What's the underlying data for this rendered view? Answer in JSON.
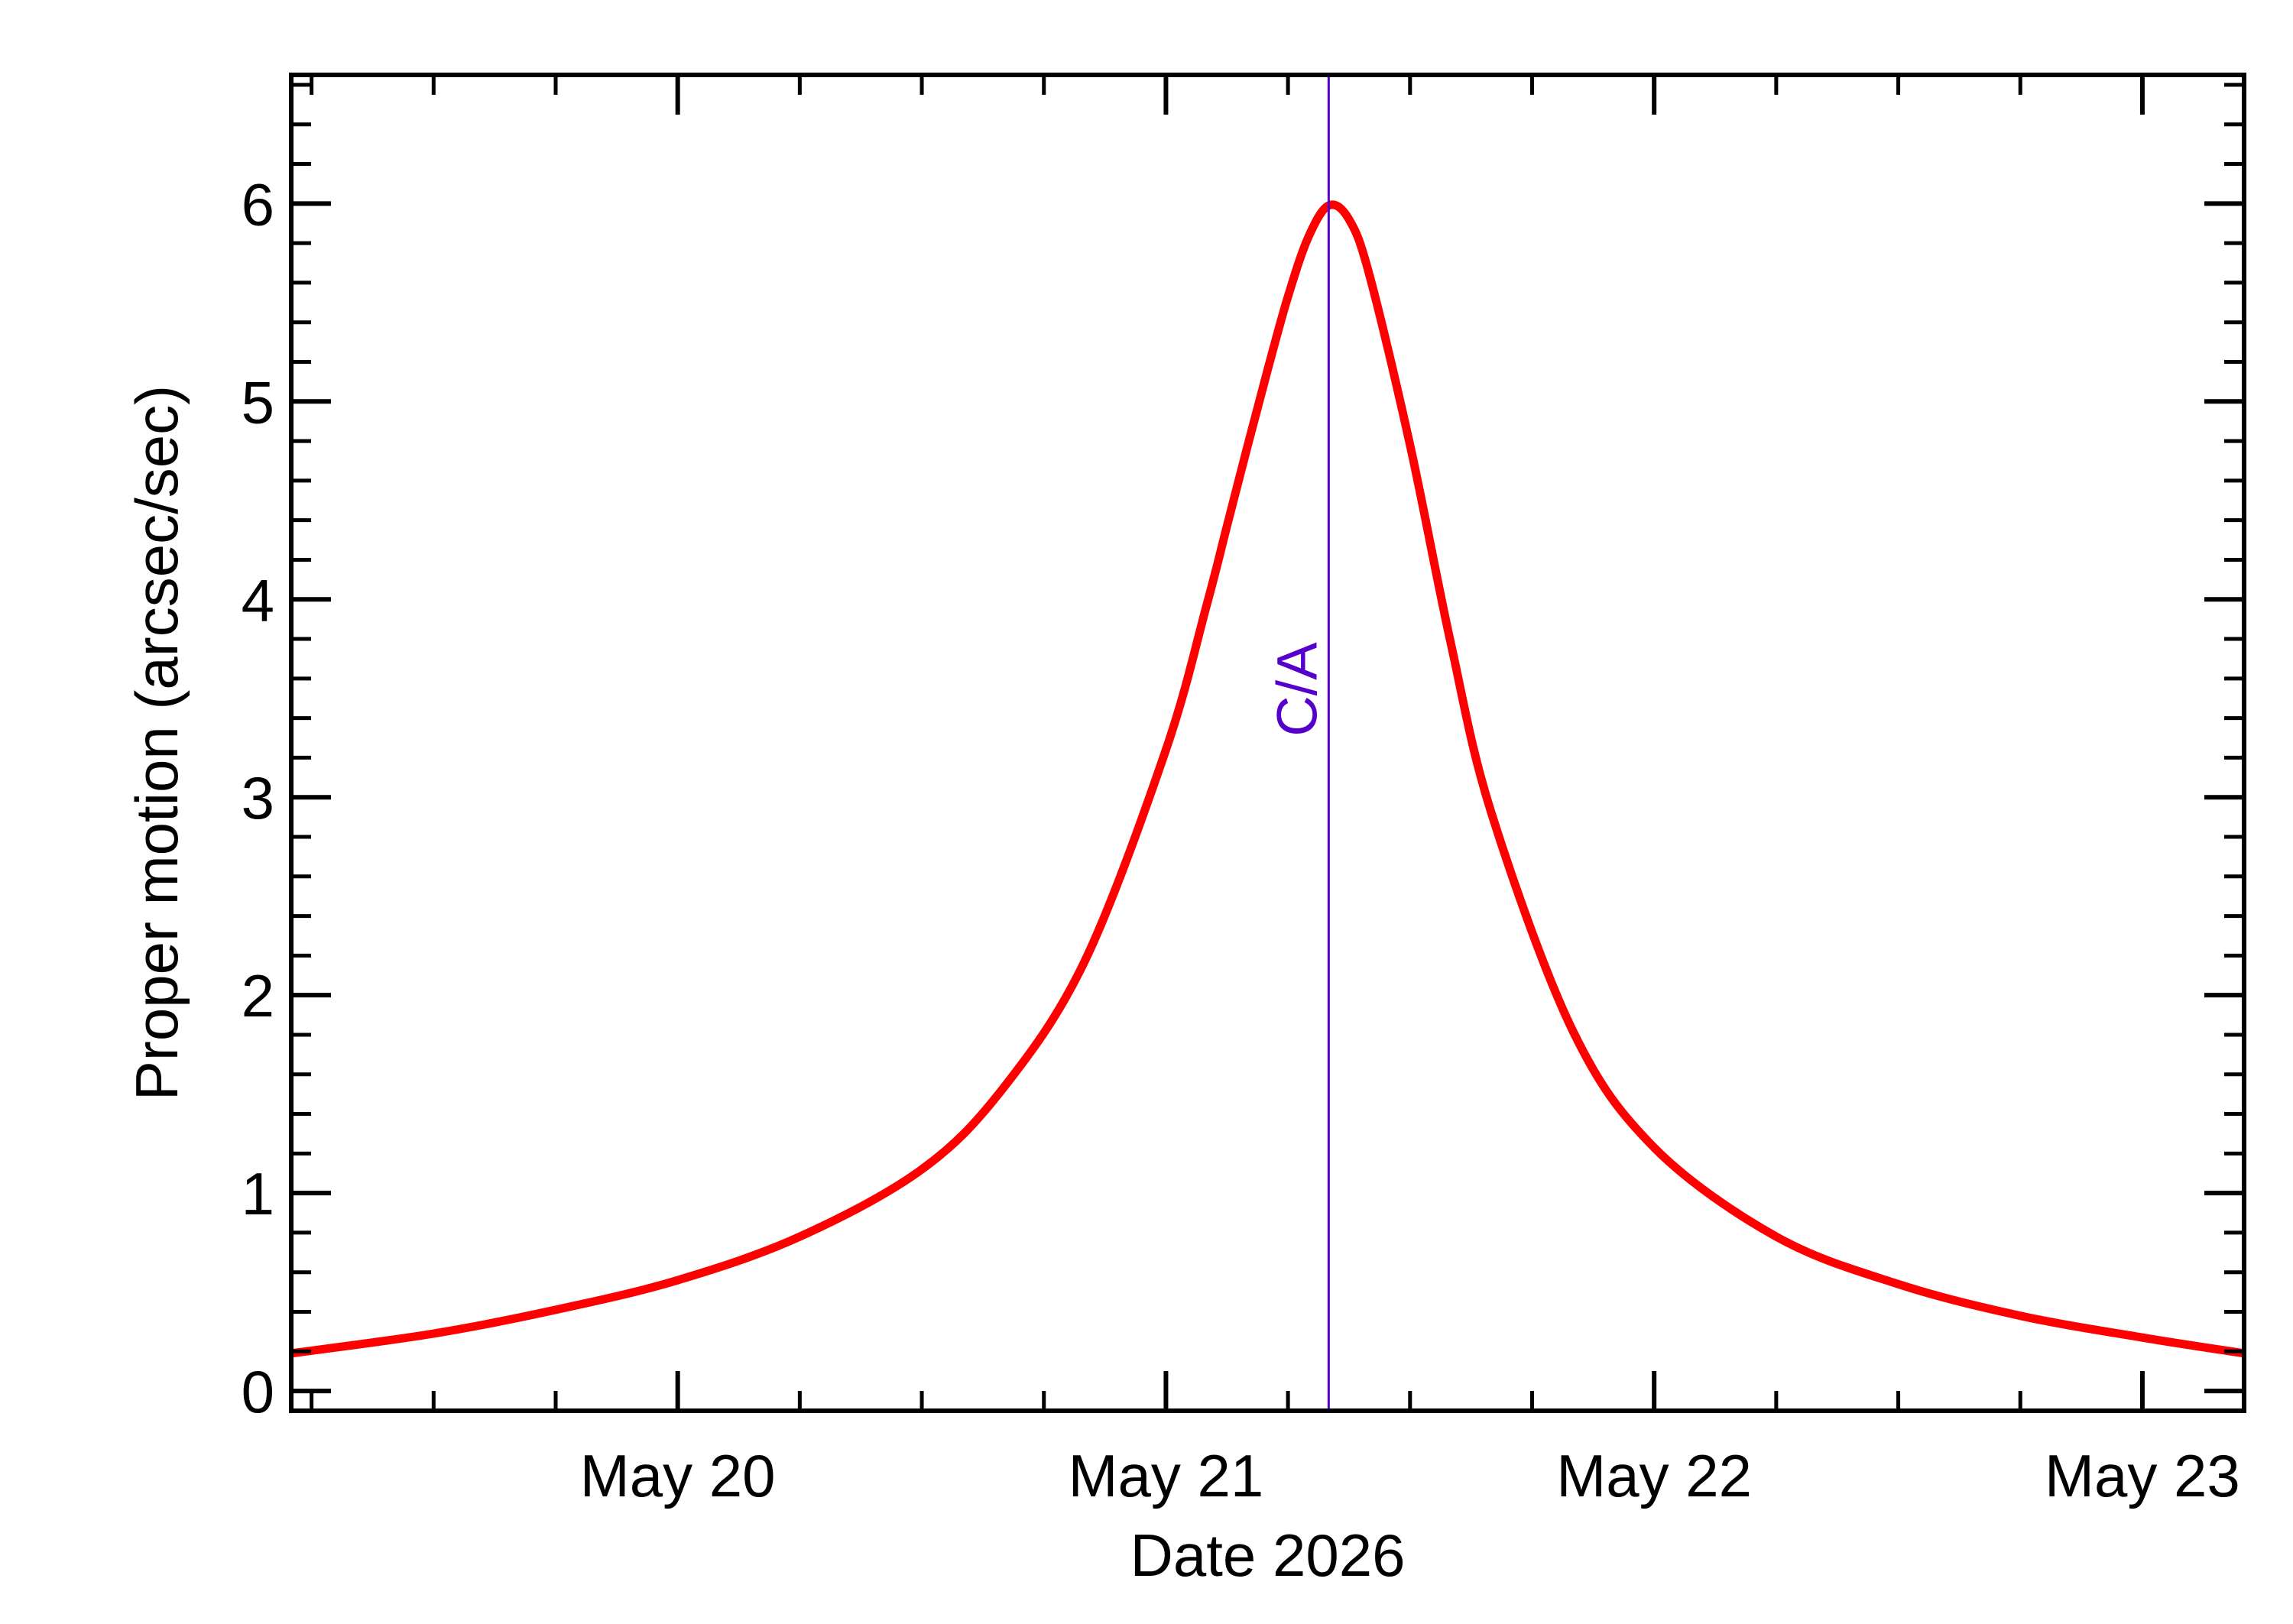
{
  "chart_data": {
    "type": "line",
    "title": "",
    "xlabel": "Date 2026",
    "ylabel": "Proper motion (arcsec/sec)",
    "x_units": "days of May 2026",
    "xlim": [
      "2026-05-19 05:00",
      "2026-05-23 05:00"
    ],
    "ylim": [
      -0.1,
      6.65
    ],
    "x_ticks": [
      {
        "value": "2026-05-20",
        "label": "May 20"
      },
      {
        "value": "2026-05-21",
        "label": "May 21"
      },
      {
        "value": "2026-05-22",
        "label": "May 22"
      },
      {
        "value": "2026-05-23",
        "label": "May 23"
      }
    ],
    "y_ticks": [
      {
        "value": 0,
        "label": "0"
      },
      {
        "value": 1,
        "label": "1"
      },
      {
        "value": 2,
        "label": "2"
      },
      {
        "value": 3,
        "label": "3"
      },
      {
        "value": 4,
        "label": "4"
      },
      {
        "value": 5,
        "label": "5"
      },
      {
        "value": 6,
        "label": "6"
      }
    ],
    "grid": false,
    "series": [
      {
        "color": "#ff0000",
        "points": [
          {
            "x": "2026-05-19 05:00",
            "y": 0.19
          },
          {
            "x": "2026-05-19 12:00",
            "y": 0.29
          },
          {
            "x": "2026-05-19 18:00",
            "y": 0.41
          },
          {
            "x": "2026-05-20 00:00",
            "y": 0.56
          },
          {
            "x": "2026-05-20 06:00",
            "y": 0.78
          },
          {
            "x": "2026-05-20 12:00",
            "y": 1.12
          },
          {
            "x": "2026-05-20 16:00",
            "y": 1.53
          },
          {
            "x": "2026-05-20 20:00",
            "y": 2.17
          },
          {
            "x": "2026-05-21 00:00",
            "y": 3.24
          },
          {
            "x": "2026-05-21 02:00",
            "y": 3.97
          },
          {
            "x": "2026-05-21 04:00",
            "y": 4.77
          },
          {
            "x": "2026-05-21 06:00",
            "y": 5.53
          },
          {
            "x": "2026-05-21 03:00",
            "y": 4.37
          },
          {
            "x": "2026-05-21 05:00",
            "y": 5.16
          },
          {
            "x": "2026-05-21 07:00",
            "y": 5.83
          },
          {
            "x": "2026-05-21 08:00",
            "y": 5.99
          },
          {
            "x": "2026-05-21 09:00",
            "y": 5.92
          },
          {
            "x": "2026-05-21 10:00",
            "y": 5.64
          },
          {
            "x": "2026-05-21 12:00",
            "y": 4.78
          },
          {
            "x": "2026-05-21 14:00",
            "y": 3.78
          },
          {
            "x": "2026-05-21 16:00",
            "y": 2.92
          },
          {
            "x": "2026-05-21 20:00",
            "y": 1.82
          },
          {
            "x": "2026-05-22 00:00",
            "y": 1.23
          },
          {
            "x": "2026-05-22 06:00",
            "y": 0.78
          },
          {
            "x": "2026-05-22 12:00",
            "y": 0.54
          },
          {
            "x": "2026-05-22 18:00",
            "y": 0.38
          },
          {
            "x": "2026-05-23 00:00",
            "y": 0.27
          },
          {
            "x": "2026-05-23 05:00",
            "y": 0.19
          }
        ]
      }
    ],
    "annotations": [
      {
        "type": "vertical-line",
        "x": "2026-05-21 08:00",
        "label": "C/A",
        "color": "#5500cc"
      }
    ]
  }
}
